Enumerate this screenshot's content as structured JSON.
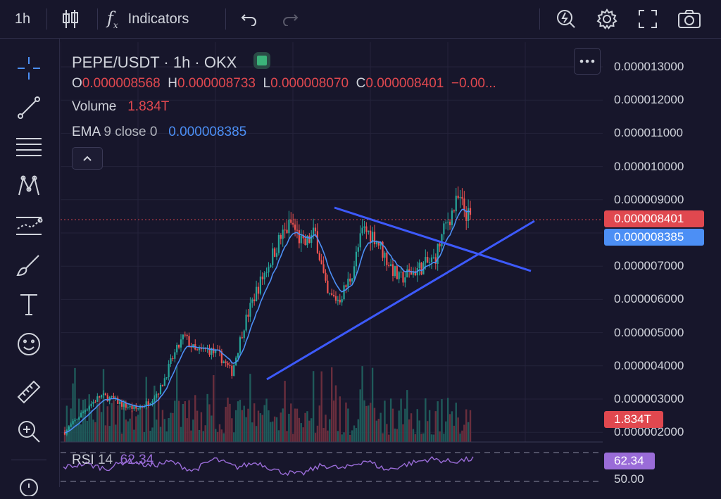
{
  "toolbar": {
    "interval": "1h",
    "indicators_label": "Indicators",
    "fx_label": "f",
    "fx_sub": "x"
  },
  "legend": {
    "symbol": "PEPE/USDT · 1h · OKX",
    "open_label": "O",
    "open": "0.000008568",
    "high_label": "H",
    "high": "0.000008733",
    "low_label": "L",
    "low": "0.000008070",
    "close_label": "C",
    "close": "0.000008401",
    "change": "−0.00...",
    "volume_label": "Volume",
    "volume": "1.834T",
    "ema_label": "EMA",
    "ema_params": "9 close 0",
    "ema_value": "0.000008385",
    "rsi_label": "RSI",
    "rsi_params": "14",
    "rsi_value": "62.34"
  },
  "price_axis": {
    "ticks": [
      "0.000013000",
      "0.000012000",
      "0.000011000",
      "0.000010000",
      "0.000009000",
      "0.000007000",
      "0.000006000",
      "0.000005000",
      "0.000004000",
      "0.000003000",
      "0.000002000"
    ],
    "close_badge": "0.000008401",
    "ema_badge": "0.000008385",
    "volume_badge": "1.834T",
    "rsi_badge": "62.34",
    "rsi_axis_partial": "50.00"
  },
  "colors": {
    "background": "#17162b",
    "up": "#26a69a",
    "down": "#ef5350",
    "ema": "#4c8ff5",
    "trendline": "#3d5afe",
    "rsi": "#9a6cd8",
    "badge_red": "#e0484f",
    "badge_blue": "#4c8ff5",
    "badge_purple": "#9a6cd8"
  },
  "chart_data": {
    "type": "candlestick",
    "symbol": "PEPE/USDT",
    "interval": "1h",
    "exchange": "OKX",
    "ylim": [
      1.8e-06,
      1.34e-05
    ],
    "last_close": 8.401e-06,
    "ema9_last": 8.385e-06,
    "price_path": [
      2e-06,
      2.4e-06,
      2.8e-06,
      3.1e-06,
      3e-06,
      2.8e-06,
      2.7e-06,
      2.9e-06,
      3.3e-06,
      4.2e-06,
      4.9e-06,
      4.4e-06,
      4.5e-06,
      4.3e-06,
      3.8e-06,
      5.2e-06,
      6.2e-06,
      7e-06,
      7.8e-06,
      8.3e-06,
      7.6e-06,
      8e-06,
      6.1e-06,
      6e-06,
      6.7e-06,
      8.1e-06,
      7.9e-06,
      7.2e-06,
      6.6e-06,
      6.8e-06,
      7e-06,
      7.2e-06,
      8.3e-06,
      9e-06,
      8.4e-06
    ],
    "trendlines": [
      {
        "name": "lower",
        "from": [
          0.0,
          3.6e-06
        ],
        "to": [
          1.0,
          8.4e-06
        ]
      },
      {
        "name": "upper",
        "from": [
          0.0,
          8.7e-06
        ],
        "to": [
          1.0,
          6.8e-06
        ]
      }
    ],
    "rsi_path": [
      50,
      55,
      48,
      60,
      52,
      58,
      45,
      62,
      50,
      57,
      44,
      40,
      53,
      48,
      60,
      46,
      55,
      62,
      58,
      62
    ]
  }
}
